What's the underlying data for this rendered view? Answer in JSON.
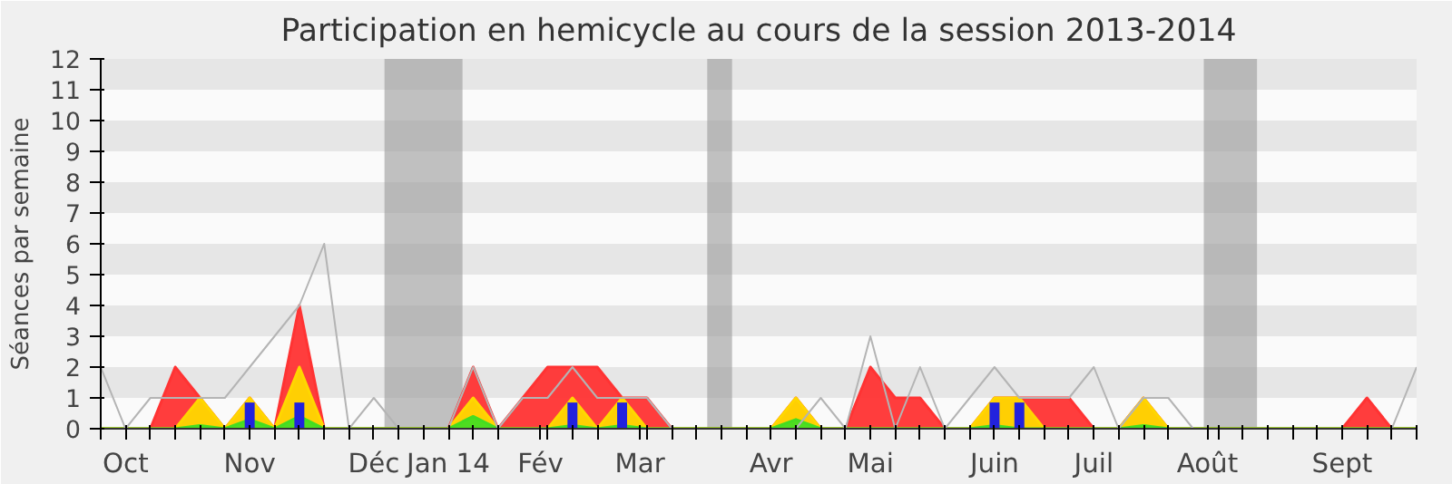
{
  "chart_data": {
    "type": "area",
    "title": "Participation en hemicycle au cours de la session 2013-2014",
    "ylabel": "Séances par semaine",
    "x": [
      "2013-09-30",
      "2013-10-07",
      "2013-10-14",
      "2013-10-21",
      "2013-10-28",
      "2013-11-04",
      "2013-11-11",
      "2013-11-18",
      "2013-11-25",
      "2013-12-02",
      "2013-12-09",
      "2013-12-16",
      "2013-12-23",
      "2013-12-30",
      "2014-01-06",
      "2014-01-13",
      "2014-01-20",
      "2014-01-27",
      "2014-02-03",
      "2014-02-10",
      "2014-02-17",
      "2014-02-24",
      "2014-03-03",
      "2014-03-10",
      "2014-03-17",
      "2014-03-24",
      "2014-03-31",
      "2014-04-07",
      "2014-04-14",
      "2014-04-21",
      "2014-04-28",
      "2014-05-05",
      "2014-05-12",
      "2014-05-19",
      "2014-05-26",
      "2014-06-02",
      "2014-06-09",
      "2014-06-16",
      "2014-06-23",
      "2014-06-30",
      "2014-07-07",
      "2014-07-14",
      "2014-07-21",
      "2014-07-28",
      "2014-08-04",
      "2014-08-11",
      "2014-08-18",
      "2014-08-25",
      "2014-09-01",
      "2014-09-08",
      "2014-09-15",
      "2014-09-22",
      "2014-09-29",
      "2014-10-06"
    ],
    "series": [
      {
        "color": "#ff3333",
        "values": [
          0,
          0,
          0,
          2,
          1,
          0,
          1,
          0,
          4,
          0,
          0,
          0,
          0,
          0,
          0,
          2,
          0,
          1,
          2,
          2,
          2,
          1,
          1,
          0,
          0,
          0,
          0,
          0,
          1,
          0,
          0,
          2,
          1,
          1,
          0,
          0,
          1,
          1,
          1,
          1,
          0,
          0,
          1,
          0,
          0,
          0,
          0,
          0,
          0,
          0,
          0,
          1,
          0,
          0
        ]
      },
      {
        "color": "#ffd700",
        "values": [
          0,
          0,
          0,
          0,
          1,
          0,
          1,
          0,
          2,
          0,
          0,
          0,
          0,
          0,
          0,
          1,
          0,
          0,
          0,
          1,
          0,
          1,
          0,
          0,
          0,
          0,
          0,
          0,
          1,
          0,
          0,
          0,
          0,
          0,
          0,
          0,
          1,
          1,
          0,
          0,
          0,
          0,
          1,
          0,
          0,
          0,
          0,
          0,
          0,
          0,
          0,
          0,
          0,
          0
        ]
      },
      {
        "color": "#44dd22",
        "values": [
          0,
          0,
          0,
          0,
          0.1,
          0,
          0.3,
          0,
          0.4,
          0,
          0,
          0,
          0,
          0,
          0,
          0.4,
          0,
          0,
          0,
          0.1,
          0,
          0.1,
          0,
          0,
          0,
          0,
          0,
          0,
          0.3,
          0,
          0,
          0,
          0,
          0,
          0,
          0,
          0.1,
          0,
          0,
          0,
          0,
          0,
          0.1,
          0,
          0,
          0,
          0,
          0,
          0,
          0,
          0,
          0,
          0,
          0
        ]
      },
      {
        "type": "bar",
        "color": "#2222dd",
        "values": [
          null,
          null,
          null,
          null,
          null,
          null,
          0.85,
          null,
          0.85,
          null,
          null,
          null,
          null,
          null,
          null,
          null,
          null,
          null,
          null,
          0.85,
          null,
          0.85,
          null,
          null,
          null,
          null,
          null,
          null,
          null,
          null,
          null,
          null,
          null,
          null,
          null,
          null,
          0.85,
          0.85,
          null,
          null,
          null,
          null,
          null,
          null,
          null,
          null,
          null,
          null,
          null,
          null,
          null,
          null,
          null,
          null
        ]
      },
      {
        "type": "line",
        "color": "#b4b4b4",
        "values": [
          2,
          0,
          1,
          1,
          1,
          1,
          2,
          3,
          4,
          6,
          0,
          1,
          0,
          0,
          0,
          2,
          0,
          1,
          1,
          2,
          1,
          1,
          1,
          0,
          0,
          0,
          0,
          0,
          0,
          1,
          0,
          3,
          0,
          2,
          0,
          1,
          2,
          1,
          1,
          1,
          2,
          0,
          1,
          1,
          0,
          0,
          0,
          0,
          0,
          0,
          0,
          0,
          0,
          2
        ]
      }
    ],
    "xlim": [
      "2013-09-30",
      "2014-10-06"
    ],
    "ylim": [
      0,
      12
    ],
    "yticks": [
      0,
      1,
      2,
      3,
      4,
      5,
      6,
      7,
      8,
      9,
      10,
      11,
      12
    ],
    "xticks": [
      {
        "value": "2013-09-30",
        "label": null
      },
      {
        "value": "2013-10-07",
        "label": "Oct"
      },
      {
        "value": "2013-10-14",
        "label": null
      },
      {
        "value": "2013-10-21",
        "label": null
      },
      {
        "value": "2013-10-28",
        "label": null
      },
      {
        "value": "2013-11-04",
        "label": null
      },
      {
        "value": "2013-11-11",
        "label": "Nov"
      },
      {
        "value": "2013-11-18",
        "label": null
      },
      {
        "value": "2013-11-25",
        "label": null
      },
      {
        "value": "2013-12-02",
        "label": null
      },
      {
        "value": "2013-12-09",
        "label": null
      },
      {
        "value": "2013-12-16",
        "label": "Déc"
      },
      {
        "value": "2013-12-23",
        "label": null
      },
      {
        "value": "2013-12-30",
        "label": null
      },
      {
        "value": "2014-01-06",
        "label": "Jan 14"
      },
      {
        "value": "2014-01-13",
        "label": null
      },
      {
        "value": "2014-01-20",
        "label": null
      },
      {
        "value": "2014-02-01",
        "label": "Fév"
      },
      {
        "value": "2014-02-03",
        "label": null
      },
      {
        "value": "2014-02-10",
        "label": null
      },
      {
        "value": "2014-02-17",
        "label": null
      },
      {
        "value": "2014-03-01",
        "label": "Mar"
      },
      {
        "value": "2014-03-03",
        "label": null
      },
      {
        "value": "2014-03-10",
        "label": null
      },
      {
        "value": "2014-03-17",
        "label": null
      },
      {
        "value": "2014-03-24",
        "label": null
      },
      {
        "value": "2014-03-31",
        "label": null
      },
      {
        "value": "2014-04-07",
        "label": "Avr"
      },
      {
        "value": "2014-04-14",
        "label": null
      },
      {
        "value": "2014-04-21",
        "label": null
      },
      {
        "value": "2014-04-28",
        "label": null
      },
      {
        "value": "2014-05-05",
        "label": "Mai"
      },
      {
        "value": "2014-05-12",
        "label": null
      },
      {
        "value": "2014-05-19",
        "label": null
      },
      {
        "value": "2014-05-26",
        "label": null
      },
      {
        "value": "2014-06-02",
        "label": null
      },
      {
        "value": "2014-06-09",
        "label": "Juin"
      },
      {
        "value": "2014-06-16",
        "label": null
      },
      {
        "value": "2014-06-23",
        "label": null
      },
      {
        "value": "2014-06-30",
        "label": null
      },
      {
        "value": "2014-07-07",
        "label": "Juil"
      },
      {
        "value": "2014-07-14",
        "label": null
      },
      {
        "value": "2014-07-21",
        "label": null
      },
      {
        "value": "2014-07-28",
        "label": null
      },
      {
        "value": "2014-08-08",
        "label": "Août"
      },
      {
        "value": "2014-08-11",
        "label": null
      },
      {
        "value": "2014-08-18",
        "label": null
      },
      {
        "value": "2014-08-25",
        "label": null
      },
      {
        "value": "2014-09-01",
        "label": null
      },
      {
        "value": "2014-09-08",
        "label": null
      },
      {
        "value": "2014-09-15",
        "label": "Sept"
      },
      {
        "value": "2014-09-22",
        "label": null
      },
      {
        "value": "2014-09-29",
        "label": null
      },
      {
        "value": "2014-10-06",
        "label": null
      }
    ],
    "bands": [
      {
        "axis": "x",
        "from": "2013-12-19",
        "to": "2014-01-10",
        "color": "#999999"
      },
      {
        "axis": "x",
        "from": "2014-03-20",
        "to": "2014-03-27",
        "color": "#999999"
      },
      {
        "axis": "x",
        "from": "2014-08-07",
        "to": "2014-08-22",
        "color": "#999999"
      },
      {
        "axis": "y",
        "from": 1,
        "to": 2,
        "color": "#e6e6e6"
      },
      {
        "axis": "y",
        "from": 3,
        "to": 4,
        "color": "#e6e6e6"
      },
      {
        "axis": "y",
        "from": 5,
        "to": 6,
        "color": "#e6e6e6"
      },
      {
        "axis": "y",
        "from": 7,
        "to": 8,
        "color": "#e6e6e6"
      },
      {
        "axis": "y",
        "from": 9,
        "to": 10,
        "color": "#e6e6e6"
      },
      {
        "axis": "y",
        "from": 11,
        "to": 12,
        "color": "#e6e6e6"
      }
    ],
    "grid": false
  }
}
